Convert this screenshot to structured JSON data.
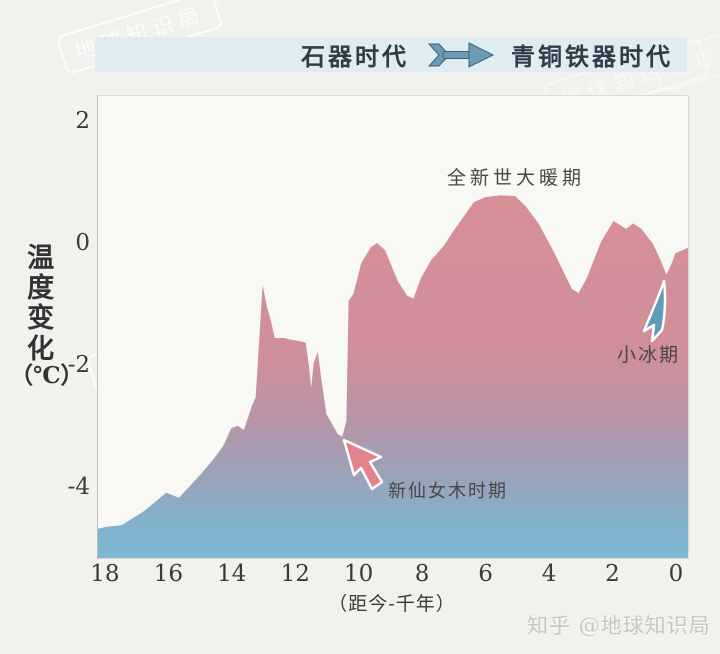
{
  "watermark_text": "地球知识局",
  "header": {
    "left_label": "石器时代",
    "right_label": "青铜铁器时代",
    "arrow_icon": "era-transition-arrow",
    "bar_color": "#dfedf2"
  },
  "y_axis": {
    "title_vertical": "温度变化",
    "title_unit": "（℃）",
    "ticks": [
      "2",
      "0",
      "-2",
      "-4"
    ]
  },
  "x_axis": {
    "ticks": [
      "18",
      "16",
      "14",
      "12",
      "10",
      "8",
      "6",
      "4",
      "2",
      "0"
    ],
    "title": "（距今-千年）"
  },
  "annotations": {
    "holocene_optimum": "全新世大暖期",
    "younger_dryas": "新仙女木时期",
    "little_ice_age": "小冰期"
  },
  "icons": {
    "era_arrow": "chevron-shaft-arrow-right",
    "younger_dryas_pointer": "red-cursor-arrow-up-left",
    "little_ice_age_pointer": "blue-cursor-arrow-up-right"
  },
  "credit": "知乎 @地球知识局",
  "colors": {
    "page_background": "#f1f1ee",
    "plot_background": "#f8f8f5",
    "header_bar": "#dfedf2",
    "header_text": "#2e3c46",
    "warm_pink": "#d5919b",
    "cold_blue": "#7cb6d6",
    "era_arrow_fill": "#6c9db7",
    "era_arrow_stroke": "#3f6172",
    "red_pointer_fill": "#e0838b",
    "blue_pointer_fill": "#5f9cba",
    "pointer_outline": "#ffffff",
    "tick_text": "#3a3a3a",
    "annotation_text": "#474747",
    "watermark": "rgba(255,255,255,0.92)",
    "credit_text": "#c7c7c2"
  },
  "chart_data": {
    "type": "area",
    "title": "",
    "xlabel": "（距今-千年）",
    "ylabel": "温度变化（℃）",
    "x_direction": "reversed (18 kyr ago at left, 0 at right)",
    "xlim": [
      18.25,
      -0.35
    ],
    "ylim": [
      -5.15,
      2.43
    ],
    "x_ticks": [
      18,
      16,
      14,
      12,
      10,
      8,
      6,
      4,
      2,
      0
    ],
    "y_ticks": [
      2,
      0,
      -2,
      -4
    ],
    "grid": false,
    "legend": "none",
    "gradient_stops": [
      [
        "0%",
        "#d78f97"
      ],
      [
        "45%",
        "#cf8f9b"
      ],
      [
        "62%",
        "#b794a7"
      ],
      [
        "78%",
        "#9aa3b9"
      ],
      [
        "90%",
        "#84b1cc"
      ],
      [
        "100%",
        "#7cb8d4"
      ]
    ],
    "series": [
      {
        "name": "温度变化",
        "units": "°C anomaly vs kyr before present",
        "points": [
          [
            18.25,
            -4.67
          ],
          [
            18.0,
            -4.64
          ],
          [
            17.5,
            -4.61
          ],
          [
            16.8,
            -4.38
          ],
          [
            16.1,
            -4.08
          ],
          [
            15.7,
            -4.16
          ],
          [
            15.0,
            -3.77
          ],
          [
            14.6,
            -3.52
          ],
          [
            14.3,
            -3.31
          ],
          [
            14.05,
            -3.02
          ],
          [
            13.85,
            -2.98
          ],
          [
            13.65,
            -3.05
          ],
          [
            13.4,
            -2.66
          ],
          [
            13.28,
            -2.51
          ],
          [
            13.06,
            -0.67
          ],
          [
            12.93,
            -1.02
          ],
          [
            12.8,
            -1.26
          ],
          [
            12.68,
            -1.54
          ],
          [
            12.4,
            -1.54
          ],
          [
            12.15,
            -1.57
          ],
          [
            11.9,
            -1.59
          ],
          [
            11.7,
            -1.62
          ],
          [
            11.6,
            -2.0
          ],
          [
            11.53,
            -2.36
          ],
          [
            11.45,
            -1.95
          ],
          [
            11.32,
            -1.77
          ],
          [
            11.2,
            -2.25
          ],
          [
            11.05,
            -2.79
          ],
          [
            10.9,
            -2.92
          ],
          [
            10.7,
            -3.11
          ],
          [
            10.55,
            -3.16
          ],
          [
            10.42,
            -2.9
          ],
          [
            10.35,
            -0.93
          ],
          [
            10.2,
            -0.82
          ],
          [
            9.95,
            -0.31
          ],
          [
            9.65,
            -0.05
          ],
          [
            9.45,
            0.02
          ],
          [
            9.2,
            -0.1
          ],
          [
            8.8,
            -0.61
          ],
          [
            8.5,
            -0.85
          ],
          [
            8.3,
            -0.89
          ],
          [
            8.08,
            -0.57
          ],
          [
            7.75,
            -0.26
          ],
          [
            7.35,
            -0.03
          ],
          [
            7.0,
            0.25
          ],
          [
            6.4,
            0.69
          ],
          [
            6.05,
            0.77
          ],
          [
            5.55,
            0.8
          ],
          [
            5.1,
            0.79
          ],
          [
            4.75,
            0.61
          ],
          [
            4.35,
            0.33
          ],
          [
            3.9,
            -0.11
          ],
          [
            3.55,
            -0.48
          ],
          [
            3.3,
            -0.74
          ],
          [
            3.1,
            -0.8
          ],
          [
            2.85,
            -0.57
          ],
          [
            2.4,
            0.03
          ],
          [
            2.0,
            0.38
          ],
          [
            1.78,
            0.31
          ],
          [
            1.6,
            0.25
          ],
          [
            1.38,
            0.34
          ],
          [
            1.12,
            0.25
          ],
          [
            0.75,
            0.0
          ],
          [
            0.5,
            -0.28
          ],
          [
            0.33,
            -0.5
          ],
          [
            0.15,
            -0.3
          ],
          [
            0.05,
            -0.15
          ],
          [
            -0.35,
            -0.06
          ]
        ]
      }
    ],
    "annotations": [
      {
        "text": "全新世大暖期",
        "x": 5.6,
        "y": 1.05,
        "pointer": "none"
      },
      {
        "text": "新仙女木时期",
        "x": 8.9,
        "y": -3.95,
        "pointer": "red arrow pointing up-left at dip (10.6, -3.2)"
      },
      {
        "text": "小冰期",
        "x": 1.0,
        "y": -1.7,
        "pointer": "blue arrow pointing up-right at dip (0.4, -0.5)"
      }
    ]
  }
}
